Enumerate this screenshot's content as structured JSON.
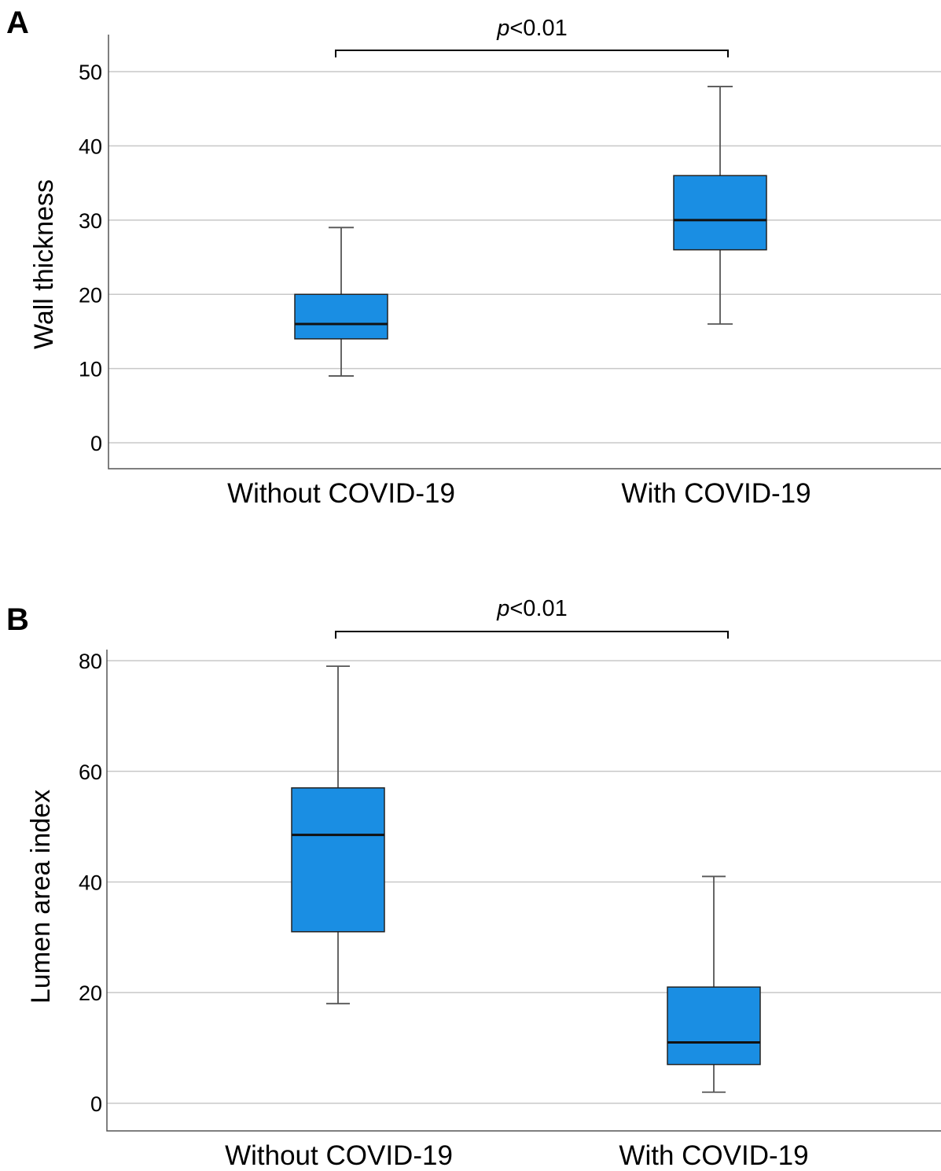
{
  "chart_data": [
    {
      "type": "box",
      "panel": "A",
      "significance": {
        "prefix": "p",
        "text": "<0.01"
      },
      "ylabel": "Wall thickness",
      "ylim": [
        -3.5,
        55
      ],
      "yticks": [
        0,
        10,
        20,
        30,
        40,
        50
      ],
      "grid": true,
      "categories": [
        "Without COVID-19",
        "With COVID-19"
      ],
      "colors": {
        "box": "#1a8ee3"
      },
      "boxes": [
        {
          "min": 9,
          "q1": 14,
          "median": 16,
          "q3": 20,
          "max": 29
        },
        {
          "min": 16,
          "q1": 26,
          "median": 30,
          "q3": 36,
          "max": 48
        }
      ]
    },
    {
      "type": "box",
      "panel": "B",
      "significance": {
        "prefix": "p",
        "text": "<0.01"
      },
      "ylabel": "Lumen area index",
      "ylim": [
        -5,
        82
      ],
      "yticks": [
        0,
        20,
        40,
        60,
        80
      ],
      "grid": true,
      "categories": [
        "Without COVID-19",
        "With COVID-19"
      ],
      "colors": {
        "box": "#1a8ee3"
      },
      "boxes": [
        {
          "min": 18,
          "q1": 31,
          "median": 48.5,
          "q3": 57,
          "max": 79
        },
        {
          "min": 2,
          "q1": 7,
          "median": 11,
          "q3": 21,
          "max": 41
        }
      ]
    }
  ]
}
